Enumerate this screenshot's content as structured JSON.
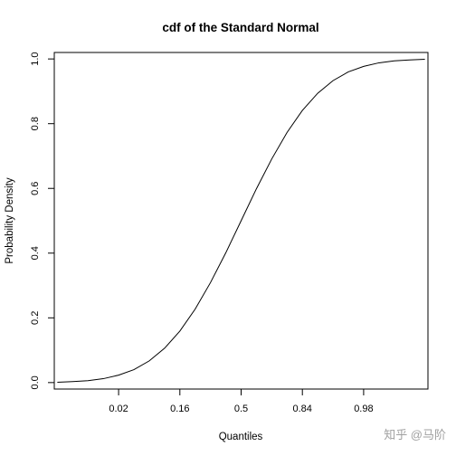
{
  "chart_data": {
    "type": "line",
    "title": "cdf of the Standard Normal",
    "xlabel": "Quantiles",
    "ylabel": "Probability Density",
    "x_tick_labels": [
      "0.02",
      "0.16",
      "0.5",
      "0.84",
      "0.98"
    ],
    "x_tick_values": [
      -2,
      -1,
      0,
      1,
      2
    ],
    "y_tick_labels": [
      "0.0",
      "0.2",
      "0.4",
      "0.6",
      "0.8",
      "1.0"
    ],
    "y_tick_values": [
      0,
      0.2,
      0.4,
      0.6,
      0.8,
      1.0
    ],
    "xlim": [
      -3.05,
      3.05
    ],
    "ylim": [
      -0.02,
      1.02
    ],
    "grid": false,
    "legend": "none",
    "series": [
      {
        "x": [
          -3.0,
          -2.75,
          -2.5,
          -2.25,
          -2.0,
          -1.75,
          -1.5,
          -1.25,
          -1.0,
          -0.75,
          -0.5,
          -0.25,
          0.0,
          0.25,
          0.5,
          0.75,
          1.0,
          1.25,
          1.5,
          1.75,
          2.0,
          2.25,
          2.5,
          2.75,
          3.0
        ],
        "y": [
          0.001,
          0.003,
          0.006,
          0.012,
          0.023,
          0.04,
          0.067,
          0.106,
          0.159,
          0.227,
          0.309,
          0.401,
          0.5,
          0.599,
          0.691,
          0.773,
          0.841,
          0.894,
          0.933,
          0.96,
          0.977,
          0.988,
          0.994,
          0.997,
          0.999
        ]
      }
    ]
  },
  "watermark": "知乎 @马阶"
}
